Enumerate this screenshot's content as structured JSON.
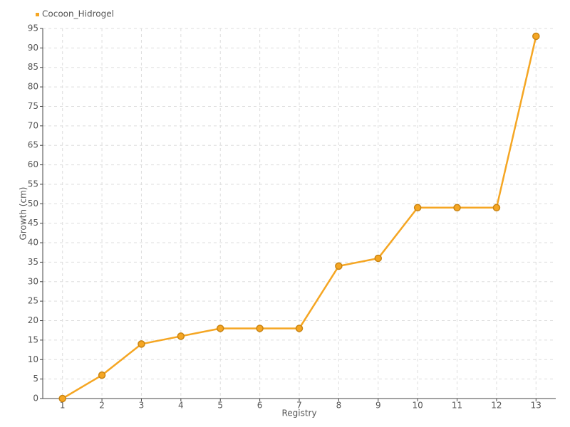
{
  "chart_data": {
    "type": "line",
    "x_label": "Registry",
    "y_label": "Growth (cm)",
    "x": [
      1,
      2,
      3,
      4,
      5,
      6,
      7,
      8,
      9,
      10,
      11,
      12,
      13
    ],
    "series": [
      {
        "name": "Cocoon_Hidrogel",
        "color": "#f5a623",
        "values": [
          0,
          6,
          14,
          16,
          18,
          18,
          18,
          34,
          36,
          49,
          49,
          49,
          93
        ]
      }
    ],
    "xlim": [
      0.5,
      13.5
    ],
    "xticks": [
      1,
      2,
      3,
      4,
      5,
      6,
      7,
      8,
      9,
      10,
      11,
      12,
      13
    ],
    "ylim": [
      0,
      95
    ],
    "yticks": [
      0,
      5,
      10,
      15,
      20,
      25,
      30,
      35,
      40,
      45,
      50,
      55,
      60,
      65,
      70,
      75,
      80,
      85,
      90,
      95
    ],
    "grid": true,
    "legend": "top-left"
  }
}
